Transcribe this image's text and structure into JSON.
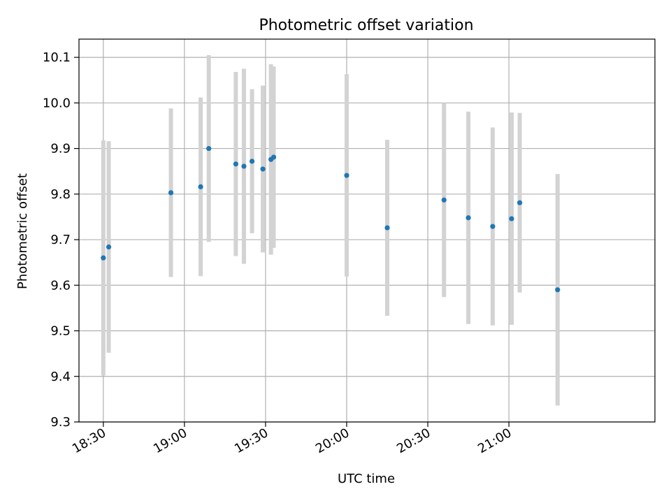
{
  "chart_data": {
    "type": "scatter",
    "title": "Photometric offset variation",
    "xlabel": "UTC time",
    "ylabel": "Photometric offset",
    "xlim": [
      "18:21",
      "21:54"
    ],
    "ylim": [
      9.3,
      10.14
    ],
    "x_ticks": [
      "18:30",
      "19:00",
      "19:30",
      "20:00",
      "20:30",
      "21:00"
    ],
    "y_ticks": [
      "9.3",
      "9.4",
      "9.5",
      "9.6",
      "9.7",
      "9.8",
      "9.9",
      "10.0",
      "10.1"
    ],
    "grid": true,
    "colors": {
      "point": "#1f77b4",
      "errorbar": "#d3d3d3",
      "grid": "#b0b0b0"
    },
    "points": [
      {
        "x": "18:30",
        "y": 9.66,
        "err": 0.258
      },
      {
        "x": "18:32",
        "y": 9.684,
        "err": 0.232
      },
      {
        "x": "18:55",
        "y": 9.803,
        "err": 0.185
      },
      {
        "x": "19:06",
        "y": 9.816,
        "err": 0.196
      },
      {
        "x": "19:09",
        "y": 9.9,
        "err": 0.205
      },
      {
        "x": "19:19",
        "y": 9.866,
        "err": 0.202
      },
      {
        "x": "19:22",
        "y": 9.861,
        "err": 0.214
      },
      {
        "x": "19:25",
        "y": 9.872,
        "err": 0.158
      },
      {
        "x": "19:29",
        "y": 9.855,
        "err": 0.183
      },
      {
        "x": "19:32",
        "y": 9.876,
        "err": 0.209
      },
      {
        "x": "19:33",
        "y": 9.881,
        "err": 0.199
      },
      {
        "x": "20:00",
        "y": 9.841,
        "err": 0.222
      },
      {
        "x": "20:15",
        "y": 9.726,
        "err": 0.193
      },
      {
        "x": "20:36",
        "y": 9.787,
        "err": 0.213
      },
      {
        "x": "20:45",
        "y": 9.748,
        "err": 0.233
      },
      {
        "x": "20:54",
        "y": 9.729,
        "err": 0.217
      },
      {
        "x": "21:01",
        "y": 9.746,
        "err": 0.233
      },
      {
        "x": "21:04",
        "y": 9.781,
        "err": 0.197
      },
      {
        "x": "21:18",
        "y": 9.59,
        "err": 0.254
      }
    ]
  }
}
